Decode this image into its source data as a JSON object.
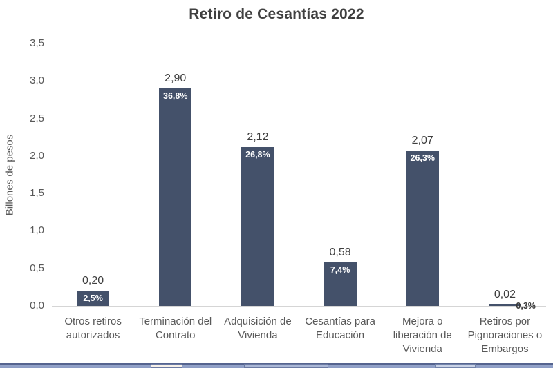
{
  "chart_data": {
    "type": "bar",
    "title": "Retiro de Cesantías 2022",
    "xlabel": "",
    "ylabel": "Billones de pesos",
    "ylim": [
      0,
      3.5
    ],
    "ytick_step": 0.5,
    "ytick_labels": [
      "0,0",
      "0,5",
      "1,0",
      "1,5",
      "2,0",
      "2,5",
      "3,0",
      "3,5"
    ],
    "grid": false,
    "legend": "none",
    "categories": [
      "Otros retiros autorizados",
      "Terminación del Contrato",
      "Adquisición de Vivienda",
      "Cesantías para Educación",
      "Mejora o liberación de Vivienda",
      "Retiros por Pignoraciones o Embargos"
    ],
    "values": [
      0.2,
      2.9,
      2.12,
      0.58,
      2.07,
      0.02
    ],
    "value_labels": [
      "0,20",
      "2,90",
      "2,12",
      "0,58",
      "2,07",
      "0,02"
    ],
    "pct_labels": [
      "2,5%",
      "36,8%",
      "26,8%",
      "7,4%",
      "26,3%",
      "0,3%"
    ]
  },
  "colors": {
    "bar": "#44516a",
    "title_text": "#404040",
    "axis_text": "#595959",
    "axis_line": "#d5d5d5",
    "pct_inside_text": "#ffffff",
    "pct_outside_text": "#3a3a3a",
    "bottom_strip": "#8b9bc4"
  }
}
